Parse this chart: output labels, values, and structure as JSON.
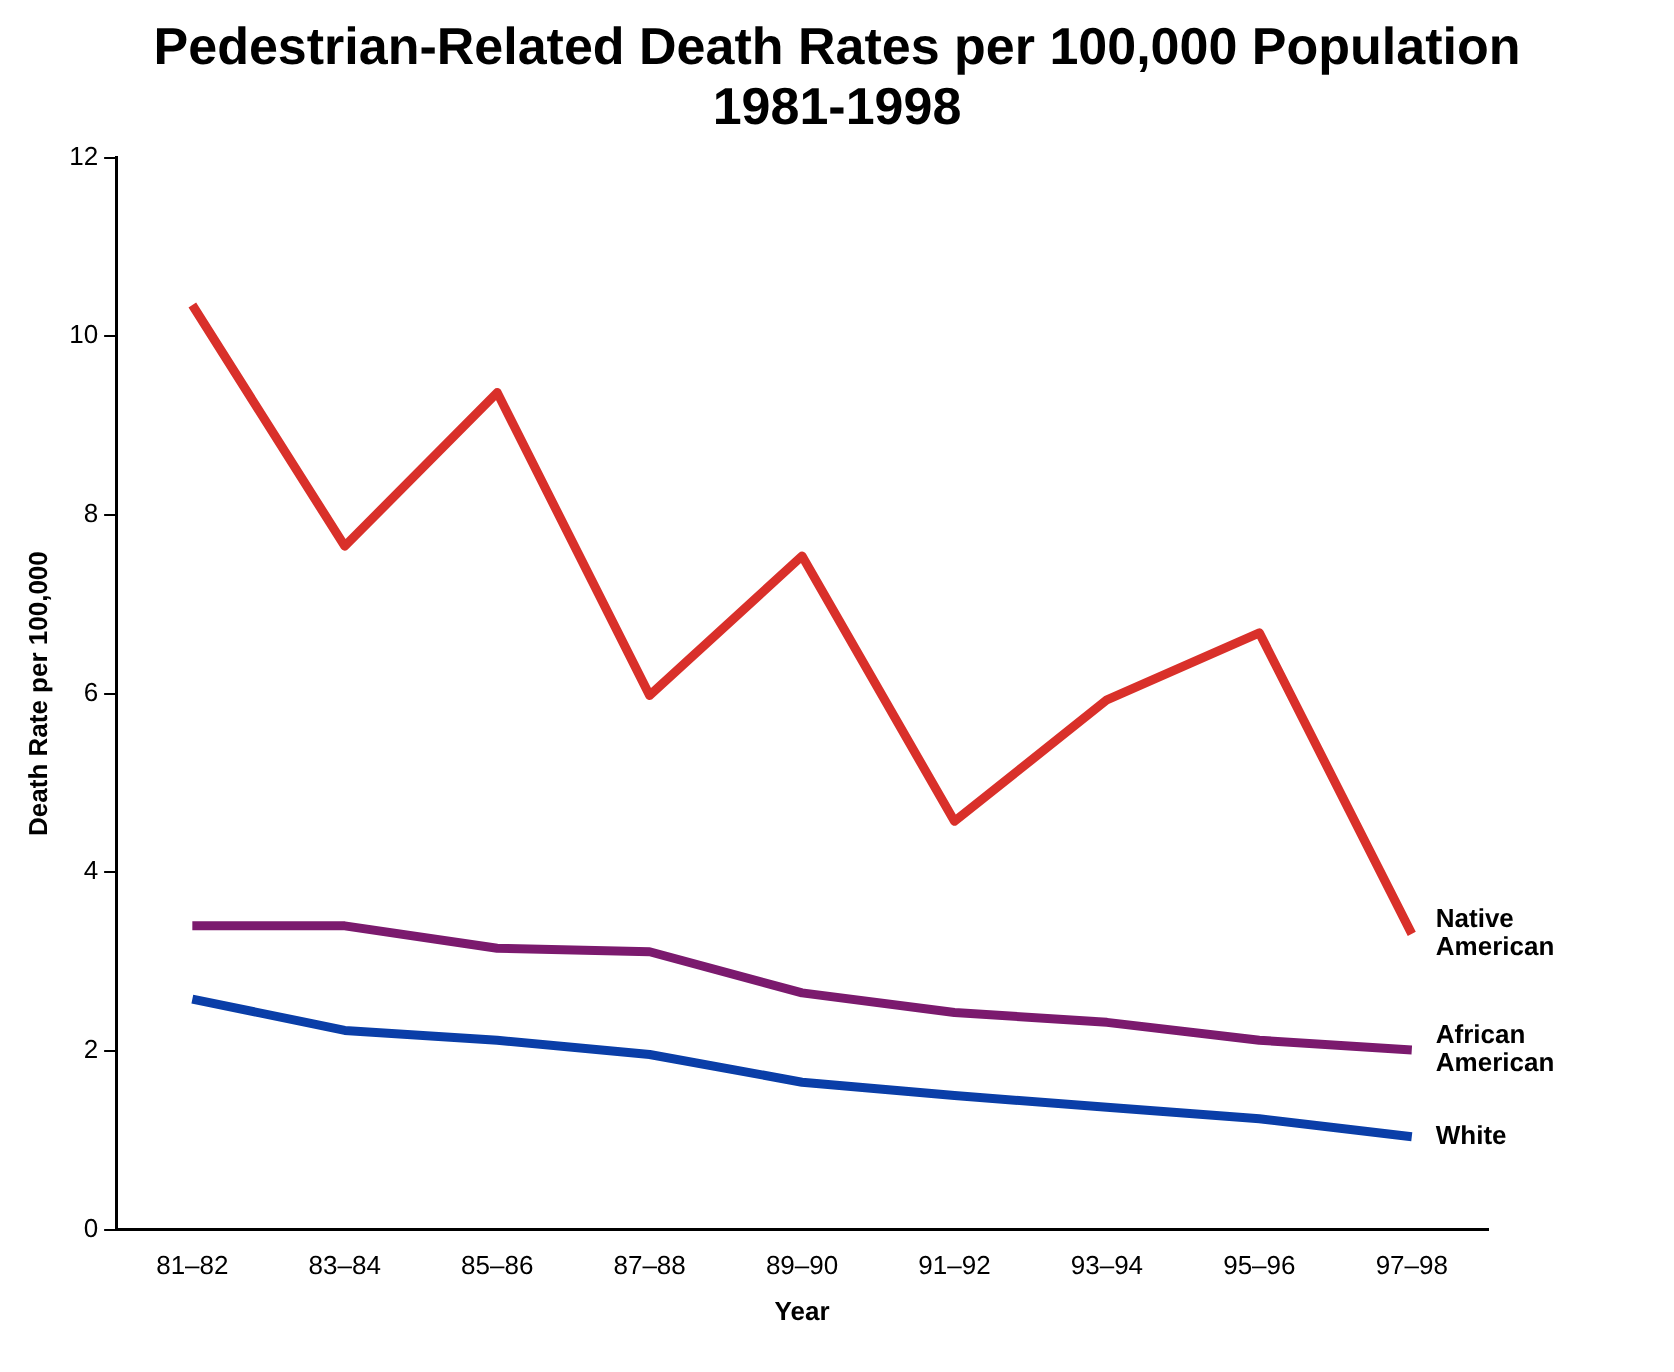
{
  "chart_data": {
    "type": "line",
    "title": "Pedestrian-Related Death Rates per 100,000 Population 1981-1998",
    "xlabel": "Year",
    "ylabel": "Death Rate per 100,000",
    "categories": [
      "81–82",
      "83–84",
      "85–86",
      "87–88",
      "89–90",
      "91–92",
      "93–94",
      "95–96",
      "97–98"
    ],
    "series": [
      {
        "name": "Native American",
        "color": "#d9302a",
        "values": [
          10.35,
          7.65,
          9.37,
          5.98,
          7.54,
          4.57,
          5.93,
          6.68,
          3.31
        ]
      },
      {
        "name": "African American",
        "color": "#7b1a6e",
        "values": [
          3.4,
          3.4,
          3.15,
          3.11,
          2.65,
          2.43,
          2.32,
          2.12,
          2.01
        ]
      },
      {
        "name": "White",
        "color": "#0a3ea8",
        "values": [
          2.58,
          2.23,
          2.12,
          1.96,
          1.65,
          1.5,
          1.37,
          1.24,
          1.04
        ]
      }
    ],
    "ylim": [
      0,
      12
    ],
    "yticks": [
      0,
      2,
      4,
      6,
      8,
      10,
      12
    ],
    "grid": false,
    "legend": false,
    "marker": "none",
    "line_style": "solid"
  }
}
